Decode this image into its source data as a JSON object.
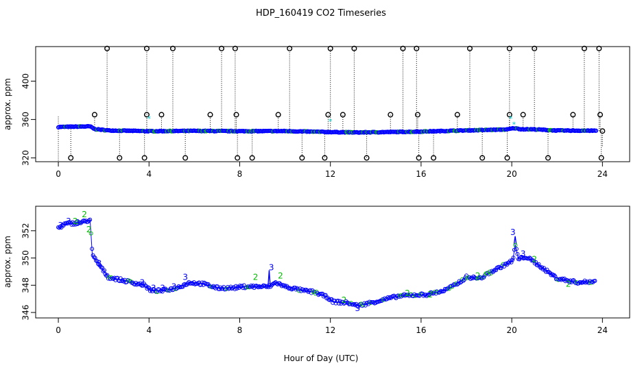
{
  "chart_data": [
    {
      "type": "scatter",
      "title": "HDP_160419  CO2 Timeseries",
      "xlabel": "",
      "ylabel": "approx. ppm",
      "xlim": [
        -1,
        25.2
      ],
      "ylim": [
        316,
        436
      ],
      "x_ticks": [
        0,
        4,
        8,
        12,
        16,
        20,
        24
      ],
      "y_ticks": [
        320,
        360,
        400
      ],
      "colors": {
        "main": "#0000ff",
        "outlier": "#000000",
        "flag": "#00cccc",
        "accent": "#00bb00"
      },
      "baseline": [
        [
          0,
          352.2
        ],
        [
          1.4,
          352.8
        ],
        [
          1.6,
          350
        ],
        [
          2.2,
          348.6
        ],
        [
          4.0,
          347.8
        ],
        [
          6.0,
          348.1
        ],
        [
          8.0,
          347.8
        ],
        [
          10.0,
          347.9
        ],
        [
          12.0,
          346.9
        ],
        [
          13.2,
          346.5
        ],
        [
          15.8,
          347.3
        ],
        [
          18.0,
          348.6
        ],
        [
          19.8,
          349.6
        ],
        [
          20.1,
          351.0
        ],
        [
          20.4,
          349.9
        ],
        [
          21.0,
          349.7
        ],
        [
          22.0,
          348.5
        ],
        [
          23.7,
          348.3
        ]
      ],
      "outliers_high": [
        2.15,
        3.9,
        5.05,
        7.2,
        7.8,
        10.2,
        12.0,
        13.05,
        15.2,
        15.8,
        18.15,
        19.9,
        21.0,
        23.2,
        23.85
      ],
      "outliers_mid": [
        1.6,
        3.9,
        4.55,
        6.7,
        7.85,
        9.7,
        11.9,
        12.55,
        14.65,
        15.85,
        17.6,
        19.9,
        20.5,
        22.7,
        23.9
      ],
      "outliers_low": [
        0.55,
        2.7,
        3.8,
        5.6,
        7.9,
        8.55,
        10.75,
        11.75,
        13.6,
        15.9,
        16.55,
        18.7,
        19.8,
        21.6,
        23.95
      ],
      "flags": [
        [
          4.0,
          361
        ],
        [
          12.0,
          358
        ],
        [
          19.95,
          361
        ],
        [
          20.1,
          355
        ]
      ]
    },
    {
      "type": "scatter",
      "title": "",
      "xlabel": "Hour of Day (UTC)",
      "ylabel": "approx. ppm",
      "xlim": [
        -1,
        25.2
      ],
      "ylim": [
        345.6,
        353.8
      ],
      "x_ticks": [
        0,
        4,
        8,
        12,
        16,
        20,
        24
      ],
      "y_ticks": [
        346,
        348,
        350,
        352
      ],
      "colors": {
        "main": "#0000ff",
        "accent": "#00bb00"
      },
      "baseline": [
        [
          0,
          352.2
        ],
        [
          0.3,
          352.5
        ],
        [
          1.0,
          352.6
        ],
        [
          1.4,
          352.8
        ],
        [
          1.5,
          350.2
        ],
        [
          1.8,
          349.5
        ],
        [
          2.2,
          348.6
        ],
        [
          3.0,
          348.3
        ],
        [
          3.8,
          348.0
        ],
        [
          4.1,
          347.6
        ],
        [
          4.6,
          347.6
        ],
        [
          5.2,
          347.8
        ],
        [
          5.8,
          348.2
        ],
        [
          6.4,
          348.1
        ],
        [
          7.0,
          347.8
        ],
        [
          7.7,
          347.8
        ],
        [
          8.2,
          347.9
        ],
        [
          9.0,
          347.9
        ],
        [
          9.3,
          347.9
        ],
        [
          9.6,
          348.2
        ],
        [
          10.0,
          347.9
        ],
        [
          10.8,
          347.6
        ],
        [
          11.3,
          347.5
        ],
        [
          11.9,
          347.1
        ],
        [
          12.1,
          346.8
        ],
        [
          12.8,
          346.7
        ],
        [
          13.2,
          346.5
        ],
        [
          14.0,
          346.8
        ],
        [
          15.0,
          347.2
        ],
        [
          15.8,
          347.3
        ],
        [
          16.2,
          347.3
        ],
        [
          17.0,
          347.6
        ],
        [
          17.5,
          348.0
        ],
        [
          18.0,
          348.6
        ],
        [
          18.6,
          348.5
        ],
        [
          19.0,
          348.9
        ],
        [
          19.8,
          349.6
        ],
        [
          20.05,
          349.8
        ],
        [
          20.15,
          351.0
        ],
        [
          20.3,
          349.9
        ],
        [
          20.6,
          350.1
        ],
        [
          21.0,
          349.7
        ],
        [
          21.5,
          349.1
        ],
        [
          22.0,
          348.5
        ],
        [
          22.6,
          348.3
        ],
        [
          23.0,
          348.2
        ],
        [
          23.7,
          348.3
        ]
      ],
      "spikes": [
        [
          9.3,
          349.1
        ],
        [
          20.15,
          351.6
        ]
      ],
      "labels_3": [
        [
          0.1,
          352.4
        ],
        [
          0.45,
          352.7
        ],
        [
          0.85,
          352.6
        ],
        [
          1.8,
          349.6
        ],
        [
          3.7,
          348.2
        ],
        [
          4.2,
          347.8
        ],
        [
          4.6,
          347.8
        ],
        [
          5.1,
          347.9
        ],
        [
          5.6,
          348.6
        ],
        [
          9.4,
          349.3
        ],
        [
          13.2,
          346.3
        ],
        [
          20.05,
          351.9
        ],
        [
          20.5,
          350.3
        ]
      ],
      "labels_2": [
        [
          0.75,
          352.7
        ],
        [
          1.15,
          353.2
        ],
        [
          1.35,
          352.1
        ],
        [
          8.7,
          348.6
        ],
        [
          9.8,
          348.7
        ],
        [
          12.6,
          346.9
        ],
        [
          15.4,
          347.4
        ],
        [
          16.4,
          347.3
        ],
        [
          18.5,
          348.7
        ],
        [
          21.0,
          349.9
        ],
        [
          22.5,
          348.1
        ]
      ]
    }
  ]
}
